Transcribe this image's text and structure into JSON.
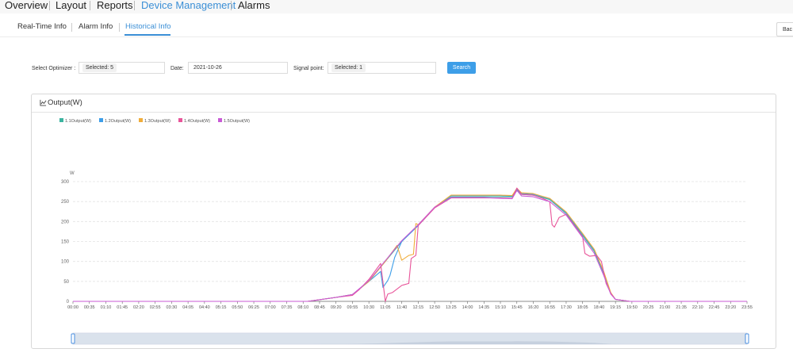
{
  "nav": {
    "items": [
      {
        "label": "Overview",
        "active": false
      },
      {
        "label": "Layout",
        "active": false
      },
      {
        "label": "Reports",
        "active": false
      },
      {
        "label": "Device Management",
        "active": true
      },
      {
        "label": "Alarms",
        "active": false
      }
    ]
  },
  "tabs": {
    "items": [
      {
        "label": "Real-Time Info",
        "active": false
      },
      {
        "label": "Alarm Info",
        "active": false
      },
      {
        "label": "Historical Info",
        "active": true
      }
    ],
    "back_label": "Bac"
  },
  "filters": {
    "optimizer_label": "Select Optimizer :",
    "optimizer_value": "Selected: 5",
    "date_label": "Date:",
    "date_value": "2021-10-26",
    "signal_label": "Signal point:",
    "signal_value": "Selected: 1",
    "search_label": "Search"
  },
  "panel": {
    "title": "Output(W)"
  },
  "colors": {
    "accent": "#3b8fd6",
    "search_button": "#3d9ee8"
  },
  "icons": [
    "line-chart-icon"
  ],
  "chart_data": {
    "type": "line",
    "title": "",
    "ylabel": "W",
    "xlabel": "",
    "ylim": [
      0,
      300
    ],
    "yticks": [
      0,
      50,
      100,
      150,
      200,
      250,
      300
    ],
    "grid": true,
    "legend_position": "top-left",
    "x_tick_labels": [
      "00:00",
      "00:35",
      "01:10",
      "01:45",
      "02:20",
      "02:55",
      "03:30",
      "04:05",
      "04:40",
      "05:15",
      "05:50",
      "06:25",
      "07:00",
      "07:35",
      "08:10",
      "08:45",
      "09:20",
      "09:55",
      "10:30",
      "11:05",
      "11:40",
      "12:15",
      "12:50",
      "13:25",
      "14:00",
      "14:35",
      "15:10",
      "15:45",
      "16:20",
      "16:55",
      "17:30",
      "18:05",
      "18:40",
      "19:15",
      "19:50",
      "20:25",
      "21:00",
      "21:35",
      "22:10",
      "22:45",
      "23:20",
      "23:55"
    ],
    "x_range": [
      "00:00",
      "23:55"
    ],
    "series": [
      {
        "name": "1.1Output(W)",
        "color": "#3cb4a0",
        "points": [
          [
            "08:20",
            0
          ],
          [
            "08:50",
            5
          ],
          [
            "09:20",
            10
          ],
          [
            "09:55",
            17
          ],
          [
            "10:30",
            50
          ],
          [
            "11:05",
            100
          ],
          [
            "11:40",
            150
          ],
          [
            "12:15",
            190
          ],
          [
            "12:50",
            235
          ],
          [
            "13:25",
            262
          ],
          [
            "14:00",
            262
          ],
          [
            "14:35",
            262
          ],
          [
            "15:10",
            262
          ],
          [
            "15:35",
            262
          ],
          [
            "15:45",
            280
          ],
          [
            "15:55",
            268
          ],
          [
            "16:20",
            266
          ],
          [
            "16:40",
            260
          ],
          [
            "16:55",
            255
          ],
          [
            "17:30",
            220
          ],
          [
            "18:05",
            165
          ],
          [
            "18:30",
            125
          ],
          [
            "18:50",
            70
          ],
          [
            "19:05",
            20
          ],
          [
            "19:15",
            5
          ],
          [
            "19:45",
            0
          ]
        ]
      },
      {
        "name": "1.2Output(W)",
        "color": "#3d9ee8",
        "points": [
          [
            "08:20",
            0
          ],
          [
            "08:50",
            5
          ],
          [
            "09:20",
            10
          ],
          [
            "09:55",
            17
          ],
          [
            "10:30",
            50
          ],
          [
            "10:55",
            75
          ],
          [
            "11:00",
            35
          ],
          [
            "11:10",
            52
          ],
          [
            "11:15",
            65
          ],
          [
            "11:25",
            110
          ],
          [
            "11:40",
            150
          ],
          [
            "12:15",
            190
          ],
          [
            "12:50",
            235
          ],
          [
            "13:25",
            265
          ],
          [
            "14:00",
            265
          ],
          [
            "14:35",
            265
          ],
          [
            "15:10",
            265
          ],
          [
            "15:35",
            264
          ],
          [
            "15:45",
            282
          ],
          [
            "15:55",
            270
          ],
          [
            "16:20",
            268
          ],
          [
            "16:40",
            262
          ],
          [
            "16:55",
            257
          ],
          [
            "17:30",
            222
          ],
          [
            "18:05",
            168
          ],
          [
            "18:30",
            128
          ],
          [
            "18:50",
            72
          ],
          [
            "19:05",
            20
          ],
          [
            "19:15",
            5
          ],
          [
            "19:45",
            0
          ]
        ]
      },
      {
        "name": "1.3Output(W)",
        "color": "#f0ad3a",
        "points": [
          [
            "08:20",
            0
          ],
          [
            "08:50",
            5
          ],
          [
            "09:20",
            10
          ],
          [
            "09:55",
            17
          ],
          [
            "10:30",
            50
          ],
          [
            "11:05",
            100
          ],
          [
            "11:30",
            140
          ],
          [
            "11:40",
            103
          ],
          [
            "11:55",
            115
          ],
          [
            "12:05",
            118
          ],
          [
            "12:10",
            195
          ],
          [
            "12:15",
            192
          ],
          [
            "12:50",
            236
          ],
          [
            "13:25",
            266
          ],
          [
            "14:00",
            266
          ],
          [
            "14:35",
            266
          ],
          [
            "15:10",
            266
          ],
          [
            "15:35",
            265
          ],
          [
            "15:45",
            283
          ],
          [
            "15:55",
            272
          ],
          [
            "16:20",
            270
          ],
          [
            "16:40",
            263
          ],
          [
            "16:55",
            258
          ],
          [
            "17:30",
            224
          ],
          [
            "18:05",
            170
          ],
          [
            "18:30",
            130
          ],
          [
            "18:50",
            75
          ],
          [
            "19:05",
            22
          ],
          [
            "19:15",
            5
          ],
          [
            "19:45",
            0
          ]
        ]
      },
      {
        "name": "1.4Output(W)",
        "color": "#e8559a",
        "points": [
          [
            "08:20",
            0
          ],
          [
            "08:50",
            5
          ],
          [
            "09:20",
            10
          ],
          [
            "09:55",
            15
          ],
          [
            "10:10",
            30
          ],
          [
            "10:30",
            55
          ],
          [
            "10:55",
            95
          ],
          [
            "11:05",
            0
          ],
          [
            "11:10",
            18
          ],
          [
            "11:20",
            22
          ],
          [
            "11:40",
            40
          ],
          [
            "11:55",
            45
          ],
          [
            "12:00",
            107
          ],
          [
            "12:10",
            115
          ],
          [
            "12:15",
            190
          ],
          [
            "12:50",
            234
          ],
          [
            "13:25",
            259
          ],
          [
            "14:00",
            259
          ],
          [
            "14:35",
            259
          ],
          [
            "15:10",
            259
          ],
          [
            "15:35",
            258
          ],
          [
            "15:45",
            284
          ],
          [
            "15:55",
            268
          ],
          [
            "16:20",
            266
          ],
          [
            "16:40",
            258
          ],
          [
            "16:55",
            250
          ],
          [
            "17:00",
            192
          ],
          [
            "17:05",
            186
          ],
          [
            "17:15",
            210
          ],
          [
            "17:30",
            218
          ],
          [
            "18:05",
            162
          ],
          [
            "18:10",
            120
          ],
          [
            "18:20",
            113
          ],
          [
            "18:35",
            115
          ],
          [
            "18:45",
            100
          ],
          [
            "18:55",
            45
          ],
          [
            "19:05",
            20
          ],
          [
            "19:15",
            5
          ],
          [
            "19:45",
            0
          ]
        ]
      },
      {
        "name": "1.5Output(W)",
        "color": "#c95ad6",
        "points": [
          [
            "08:20",
            0
          ],
          [
            "08:50",
            5
          ],
          [
            "09:20",
            10
          ],
          [
            "09:55",
            17
          ],
          [
            "10:30",
            52
          ],
          [
            "11:05",
            102
          ],
          [
            "11:40",
            152
          ],
          [
            "12:15",
            192
          ],
          [
            "12:50",
            236
          ],
          [
            "13:25",
            260
          ],
          [
            "14:00",
            260
          ],
          [
            "14:35",
            260
          ],
          [
            "15:10",
            258
          ],
          [
            "15:35",
            257
          ],
          [
            "15:45",
            278
          ],
          [
            "15:55",
            264
          ],
          [
            "16:20",
            262
          ],
          [
            "16:40",
            255
          ],
          [
            "16:55",
            250
          ],
          [
            "17:30",
            216
          ],
          [
            "18:05",
            160
          ],
          [
            "18:30",
            120
          ],
          [
            "18:50",
            65
          ],
          [
            "19:05",
            18
          ],
          [
            "19:15",
            5
          ],
          [
            "19:45",
            0
          ]
        ]
      }
    ],
    "data_zoom": {
      "start": "00:00",
      "end": "23:55"
    }
  }
}
